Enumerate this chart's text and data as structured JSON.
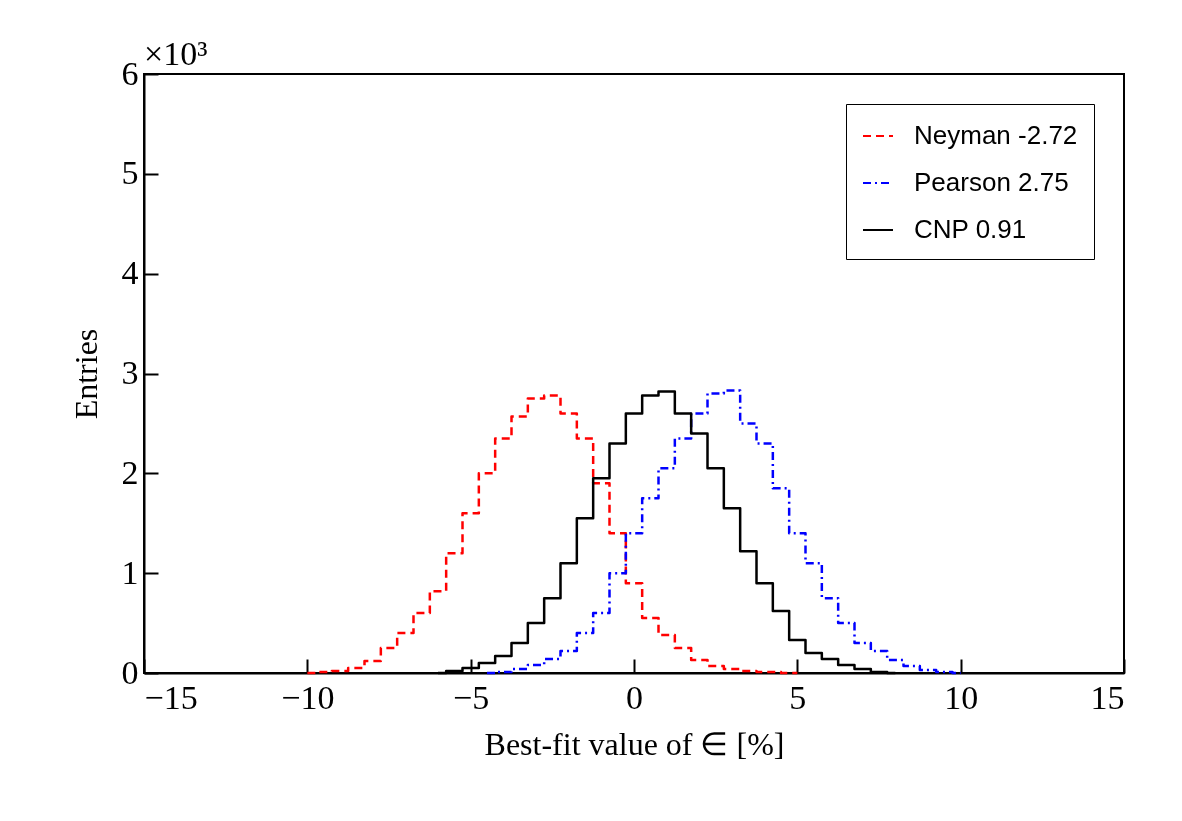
{
  "chart_data": {
    "type": "step",
    "xlabel": "Best-fit value of ∈ [%]",
    "ylabel": "Entries",
    "annotations": [
      "×10³"
    ],
    "xlim": [
      -15,
      15
    ],
    "xticks": [
      {
        "value": -15,
        "label": "−15"
      },
      {
        "value": -10,
        "label": "−10"
      },
      {
        "value": -5,
        "label": "−5"
      },
      0,
      5,
      10,
      15
    ],
    "ylim": [
      0,
      6
    ],
    "yticks": [
      0,
      1,
      2,
      3,
      4,
      5,
      6
    ],
    "grid": false,
    "legend": "top right",
    "series": [
      {
        "name": "Neyman -2.72",
        "color": "#ff0000",
        "line_style": "dashed",
        "x": [
          -10,
          -9.5,
          -9,
          -8.5,
          -8,
          -7.5,
          -7,
          -6.5,
          -6,
          -5.5,
          -5,
          -4.5,
          -4,
          -3.5,
          -3,
          -2.5,
          -2,
          -1.5,
          -1,
          -0.5,
          0,
          0.5,
          1,
          1.5,
          2,
          2.5,
          3,
          3.5,
          4,
          5
        ],
        "values": [
          0,
          0.01,
          0.02,
          0.05,
          0.12,
          0.25,
          0.4,
          0.6,
          0.82,
          1.2,
          1.6,
          2.0,
          2.35,
          2.57,
          2.75,
          2.78,
          2.6,
          2.35,
          1.9,
          1.4,
          0.9,
          0.55,
          0.38,
          0.25,
          0.13,
          0.07,
          0.04,
          0.02,
          0.01,
          0
        ]
      },
      {
        "name": "Pearson  2.75",
        "color": "#0000ff",
        "line_style": "dotted",
        "x": [
          -4.5,
          -4,
          -3.5,
          -3,
          -2.5,
          -2,
          -1.5,
          -1,
          -0.5,
          0,
          0.5,
          1,
          1.5,
          2,
          2.5,
          3,
          3.5,
          4,
          4.5,
          5,
          5.5,
          6,
          6.5,
          7,
          7.5,
          8,
          8.5,
          9,
          9.5,
          10
        ],
        "values": [
          0,
          0.01,
          0.04,
          0.08,
          0.14,
          0.22,
          0.4,
          0.6,
          1.0,
          1.4,
          1.75,
          2.05,
          2.35,
          2.6,
          2.8,
          2.83,
          2.5,
          2.3,
          1.85,
          1.4,
          1.1,
          0.75,
          0.5,
          0.3,
          0.22,
          0.13,
          0.07,
          0.03,
          0.01,
          0
        ]
      },
      {
        "name": "CNP      0.91",
        "color": "#000000",
        "line_style": "solid",
        "x": [
          -6,
          -5.5,
          -5,
          -4.5,
          -4,
          -3.5,
          -3,
          -2.5,
          -2,
          -1.5,
          -1,
          -0.5,
          0,
          0.5,
          1,
          1.5,
          2,
          2.5,
          3,
          3.5,
          4,
          4.5,
          5,
          5.5,
          6,
          6.5,
          7,
          7.5,
          8
        ],
        "values": [
          0,
          0.02,
          0.05,
          0.1,
          0.17,
          0.3,
          0.5,
          0.75,
          1.1,
          1.55,
          1.95,
          2.3,
          2.6,
          2.78,
          2.82,
          2.6,
          2.4,
          2.05,
          1.65,
          1.22,
          0.9,
          0.62,
          0.33,
          0.2,
          0.14,
          0.08,
          0.04,
          0.01,
          0
        ]
      }
    ]
  }
}
